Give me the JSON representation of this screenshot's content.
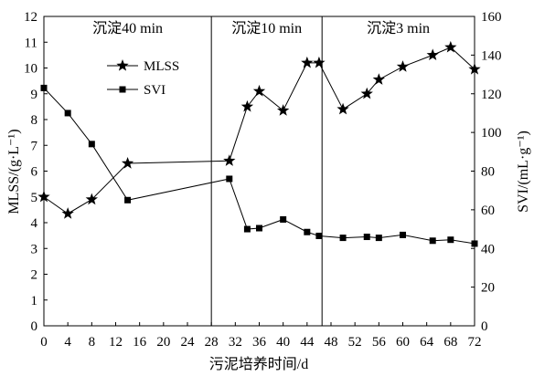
{
  "chart_data": {
    "type": "line",
    "xlabel": "污泥培养时间/d",
    "ylabel": "MLSS/(g·L⁻¹)",
    "y2label": "SVI/(mL·g⁻¹)",
    "xlim": [
      0,
      72
    ],
    "ylim": [
      0,
      12
    ],
    "y2lim": [
      0,
      160
    ],
    "x_ticks": [
      0,
      4,
      8,
      12,
      16,
      20,
      24,
      28,
      32,
      36,
      40,
      44,
      48,
      52,
      56,
      60,
      64,
      68,
      72
    ],
    "y_ticks": [
      0,
      1,
      2,
      3,
      4,
      5,
      6,
      7,
      8,
      9,
      10,
      11,
      12
    ],
    "y2_ticks": [
      0,
      20,
      40,
      60,
      80,
      100,
      120,
      140,
      160
    ],
    "grid": false,
    "legend": {
      "placement": "upper-left"
    },
    "x": [
      0,
      4,
      8,
      14,
      31,
      34,
      36,
      40,
      44,
      46,
      50,
      54,
      56,
      60,
      65,
      68,
      72
    ],
    "series": [
      {
        "name": "MLSS",
        "axis": "left",
        "marker": "star",
        "color": "#000000",
        "values": [
          5.0,
          4.35,
          4.9,
          6.3,
          6.4,
          8.5,
          9.1,
          8.35,
          10.2,
          10.2,
          8.4,
          9.0,
          9.55,
          10.05,
          10.5,
          10.8,
          9.95
        ]
      },
      {
        "name": "SVI",
        "axis": "right",
        "marker": "square",
        "color": "#000000",
        "values": [
          123,
          110,
          94,
          65,
          76,
          50,
          50.5,
          55,
          48.5,
          46.5,
          45.5,
          46,
          45.5,
          47,
          44,
          44.5,
          42.5
        ]
      }
    ],
    "phases": [
      {
        "label": "沉淀40 min",
        "start": 0,
        "end": 28
      },
      {
        "label": "沉淀10 min",
        "start": 28,
        "end": 46.5
      },
      {
        "label": "沉淀3 min",
        "start": 46.5,
        "end": 72
      }
    ]
  }
}
